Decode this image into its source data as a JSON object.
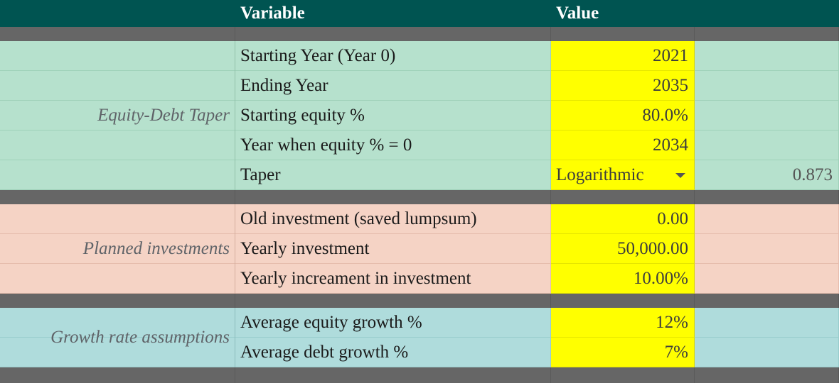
{
  "header": {
    "variable": "Variable",
    "value": "Value"
  },
  "groups": [
    {
      "label": "Equity-Debt Taper",
      "color": "#b6e1cd",
      "rows": [
        {
          "variable": "Starting Year (Year 0)",
          "value": "2021",
          "extra": ""
        },
        {
          "variable": "Ending Year",
          "value": "2035",
          "extra": ""
        },
        {
          "variable": "Starting equity %",
          "value": "80.0%",
          "extra": ""
        },
        {
          "variable": "Year when equity % = 0",
          "value": "2034",
          "extra": ""
        },
        {
          "variable": "Taper",
          "value": "Logarithmic",
          "extra": "0.873",
          "dropdown": true
        }
      ]
    },
    {
      "label": "Planned investments",
      "color": "#f5d3c5",
      "rows": [
        {
          "variable": "Old investment (saved lumpsum)",
          "value": "0.00",
          "extra": ""
        },
        {
          "variable": "Yearly investment",
          "value": "50,000.00",
          "extra": ""
        },
        {
          "variable": "Yearly increament in investment",
          "value": "10.00%",
          "extra": ""
        }
      ]
    },
    {
      "label": "Growth rate assumptions",
      "color": "#afdcdc",
      "rows": [
        {
          "variable": "Average equity growth %",
          "value": "12%",
          "extra": ""
        },
        {
          "variable": "Average debt growth %",
          "value": "7%",
          "extra": ""
        }
      ]
    }
  ],
  "colors": {
    "header": "#005451",
    "separator": "#666666",
    "input_cell": "#ffff00"
  },
  "icons": {
    "dropdown": "chevron-down-icon"
  }
}
